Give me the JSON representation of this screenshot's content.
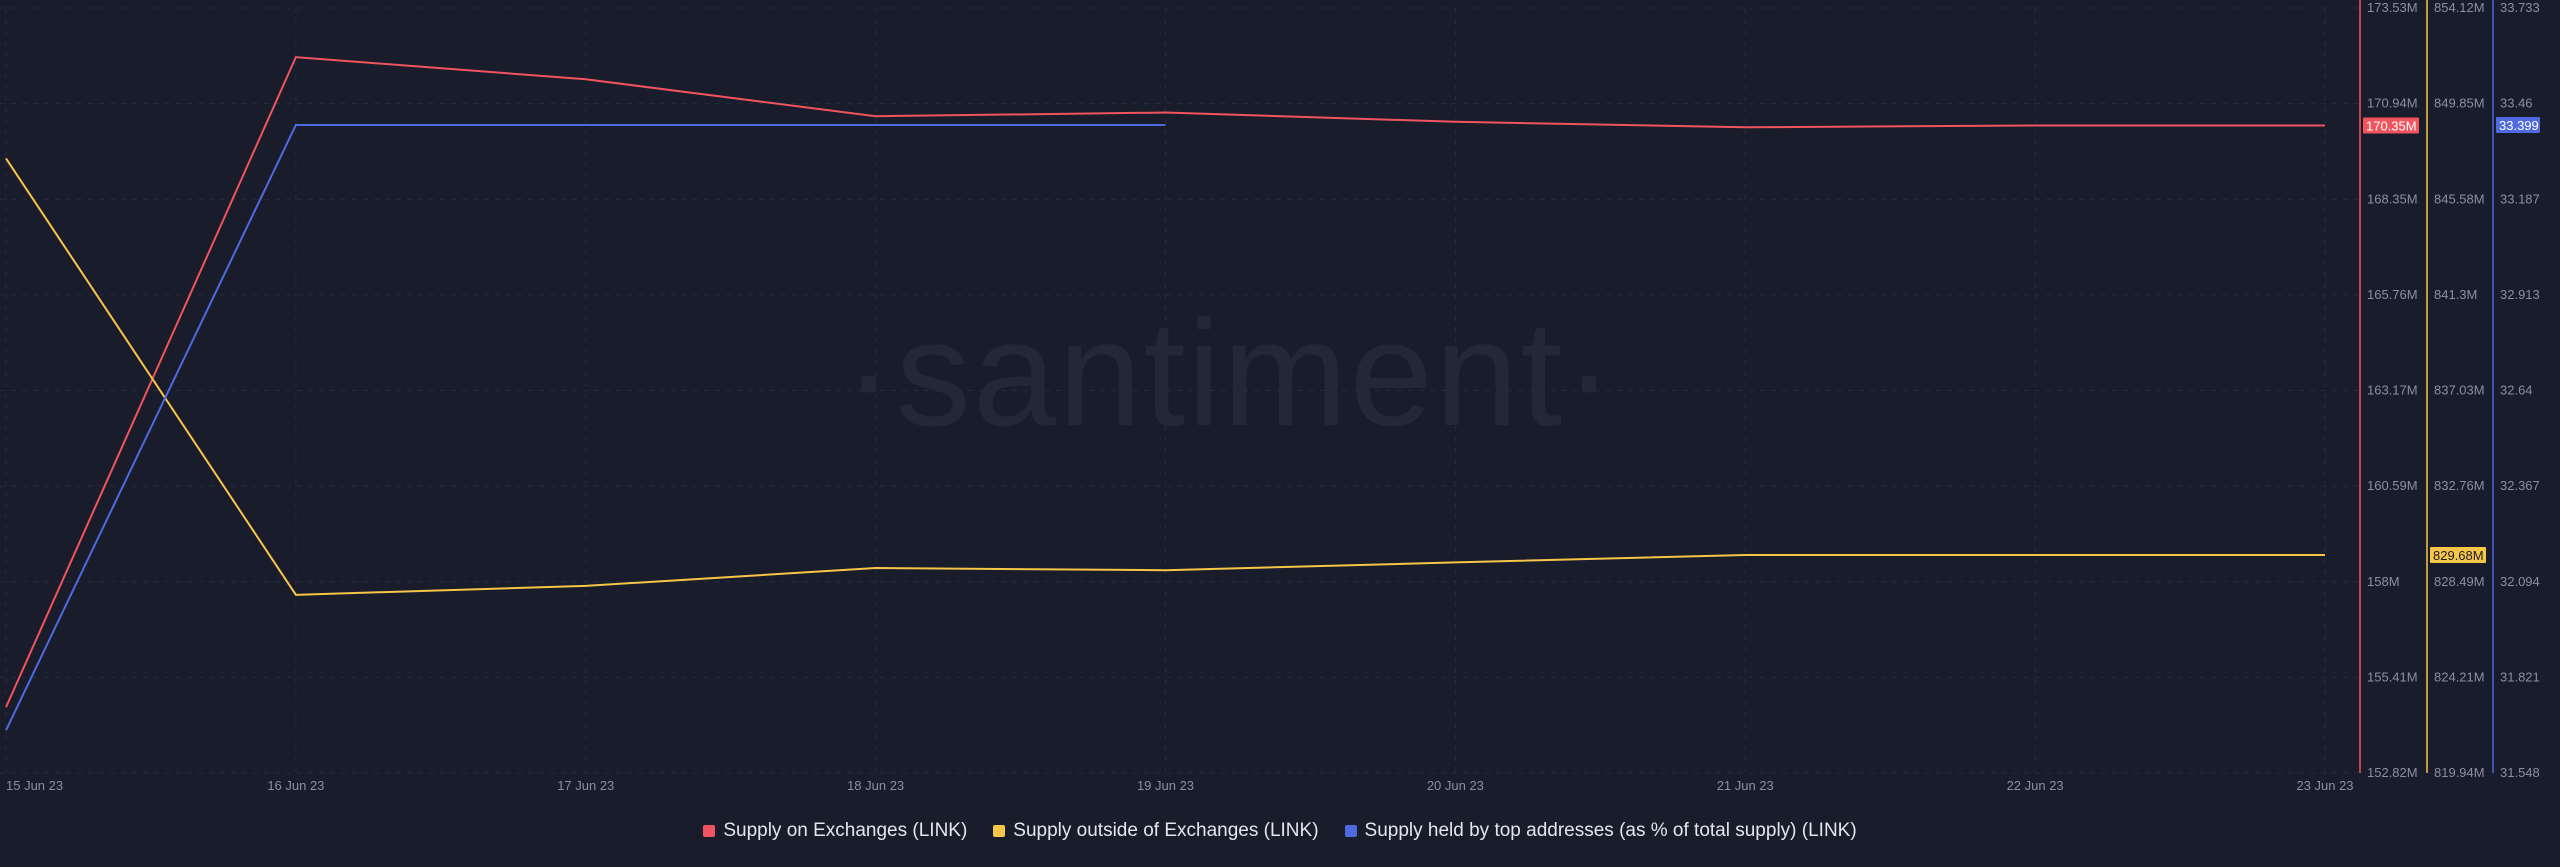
{
  "colors": {
    "background": "#191c2b",
    "grid": "#262a3a",
    "tick_text": "#8b8fa3",
    "supply_on_exchanges": "#f0545f",
    "supply_outside_exchanges": "#f7c548",
    "supply_top_addresses": "#4f6ae0"
  },
  "watermark": "·santiment·",
  "chart_data": {
    "type": "line",
    "grid": true,
    "legend_position": "bottom-center",
    "x": [
      "15 Jun 23",
      "16 Jun 23",
      "17 Jun 23",
      "18 Jun 23",
      "19 Jun 23",
      "20 Jun 23",
      "21 Jun 23",
      "22 Jun 23",
      "23 Jun 23"
    ],
    "axes": [
      {
        "id": "exchanges",
        "color": "#f0545f",
        "range": [
          152.82,
          173.53
        ],
        "ticks": [
          "173.53M",
          "170.94M",
          "168.35M",
          "165.76M",
          "163.17M",
          "160.59M",
          "158M",
          "155.41M",
          "152.82M"
        ]
      },
      {
        "id": "outside",
        "color": "#f7c548",
        "range": [
          819.94,
          854.12
        ],
        "ticks": [
          "854.12M",
          "849.85M",
          "845.58M",
          "841.3M",
          "837.03M",
          "832.76M",
          "828.49M",
          "824.21M",
          "819.94M"
        ]
      },
      {
        "id": "top",
        "color": "#4f6ae0",
        "range": [
          31.548,
          33.733
        ],
        "ticks": [
          "33.733",
          "33.46",
          "33.187",
          "32.913",
          "32.64",
          "32.367",
          "32.094",
          "31.821",
          "31.548"
        ]
      }
    ],
    "series": [
      {
        "name": "Supply on Exchanges (LINK)",
        "axis": "exchanges",
        "color": "#f0545f",
        "unit": "M",
        "values": [
          154.6,
          172.2,
          171.6,
          170.6,
          170.7,
          170.45,
          170.3,
          170.35,
          170.35
        ],
        "last_value_label": "170.35M"
      },
      {
        "name": "Supply outside of Exchanges (LINK)",
        "axis": "outside",
        "color": "#f7c548",
        "unit": "M",
        "values": [
          847.4,
          827.9,
          828.3,
          829.1,
          829.0,
          829.35,
          829.68,
          829.68,
          829.68
        ],
        "last_value_label": "829.68M"
      },
      {
        "name": "Supply held by top addresses (as % of total supply) (LINK)",
        "axis": "top",
        "color": "#4f6ae0",
        "unit": "",
        "values": [
          31.67,
          33.399,
          33.399,
          33.399,
          33.399,
          null,
          null,
          null,
          null
        ],
        "last_value_label": "33.399"
      }
    ]
  }
}
